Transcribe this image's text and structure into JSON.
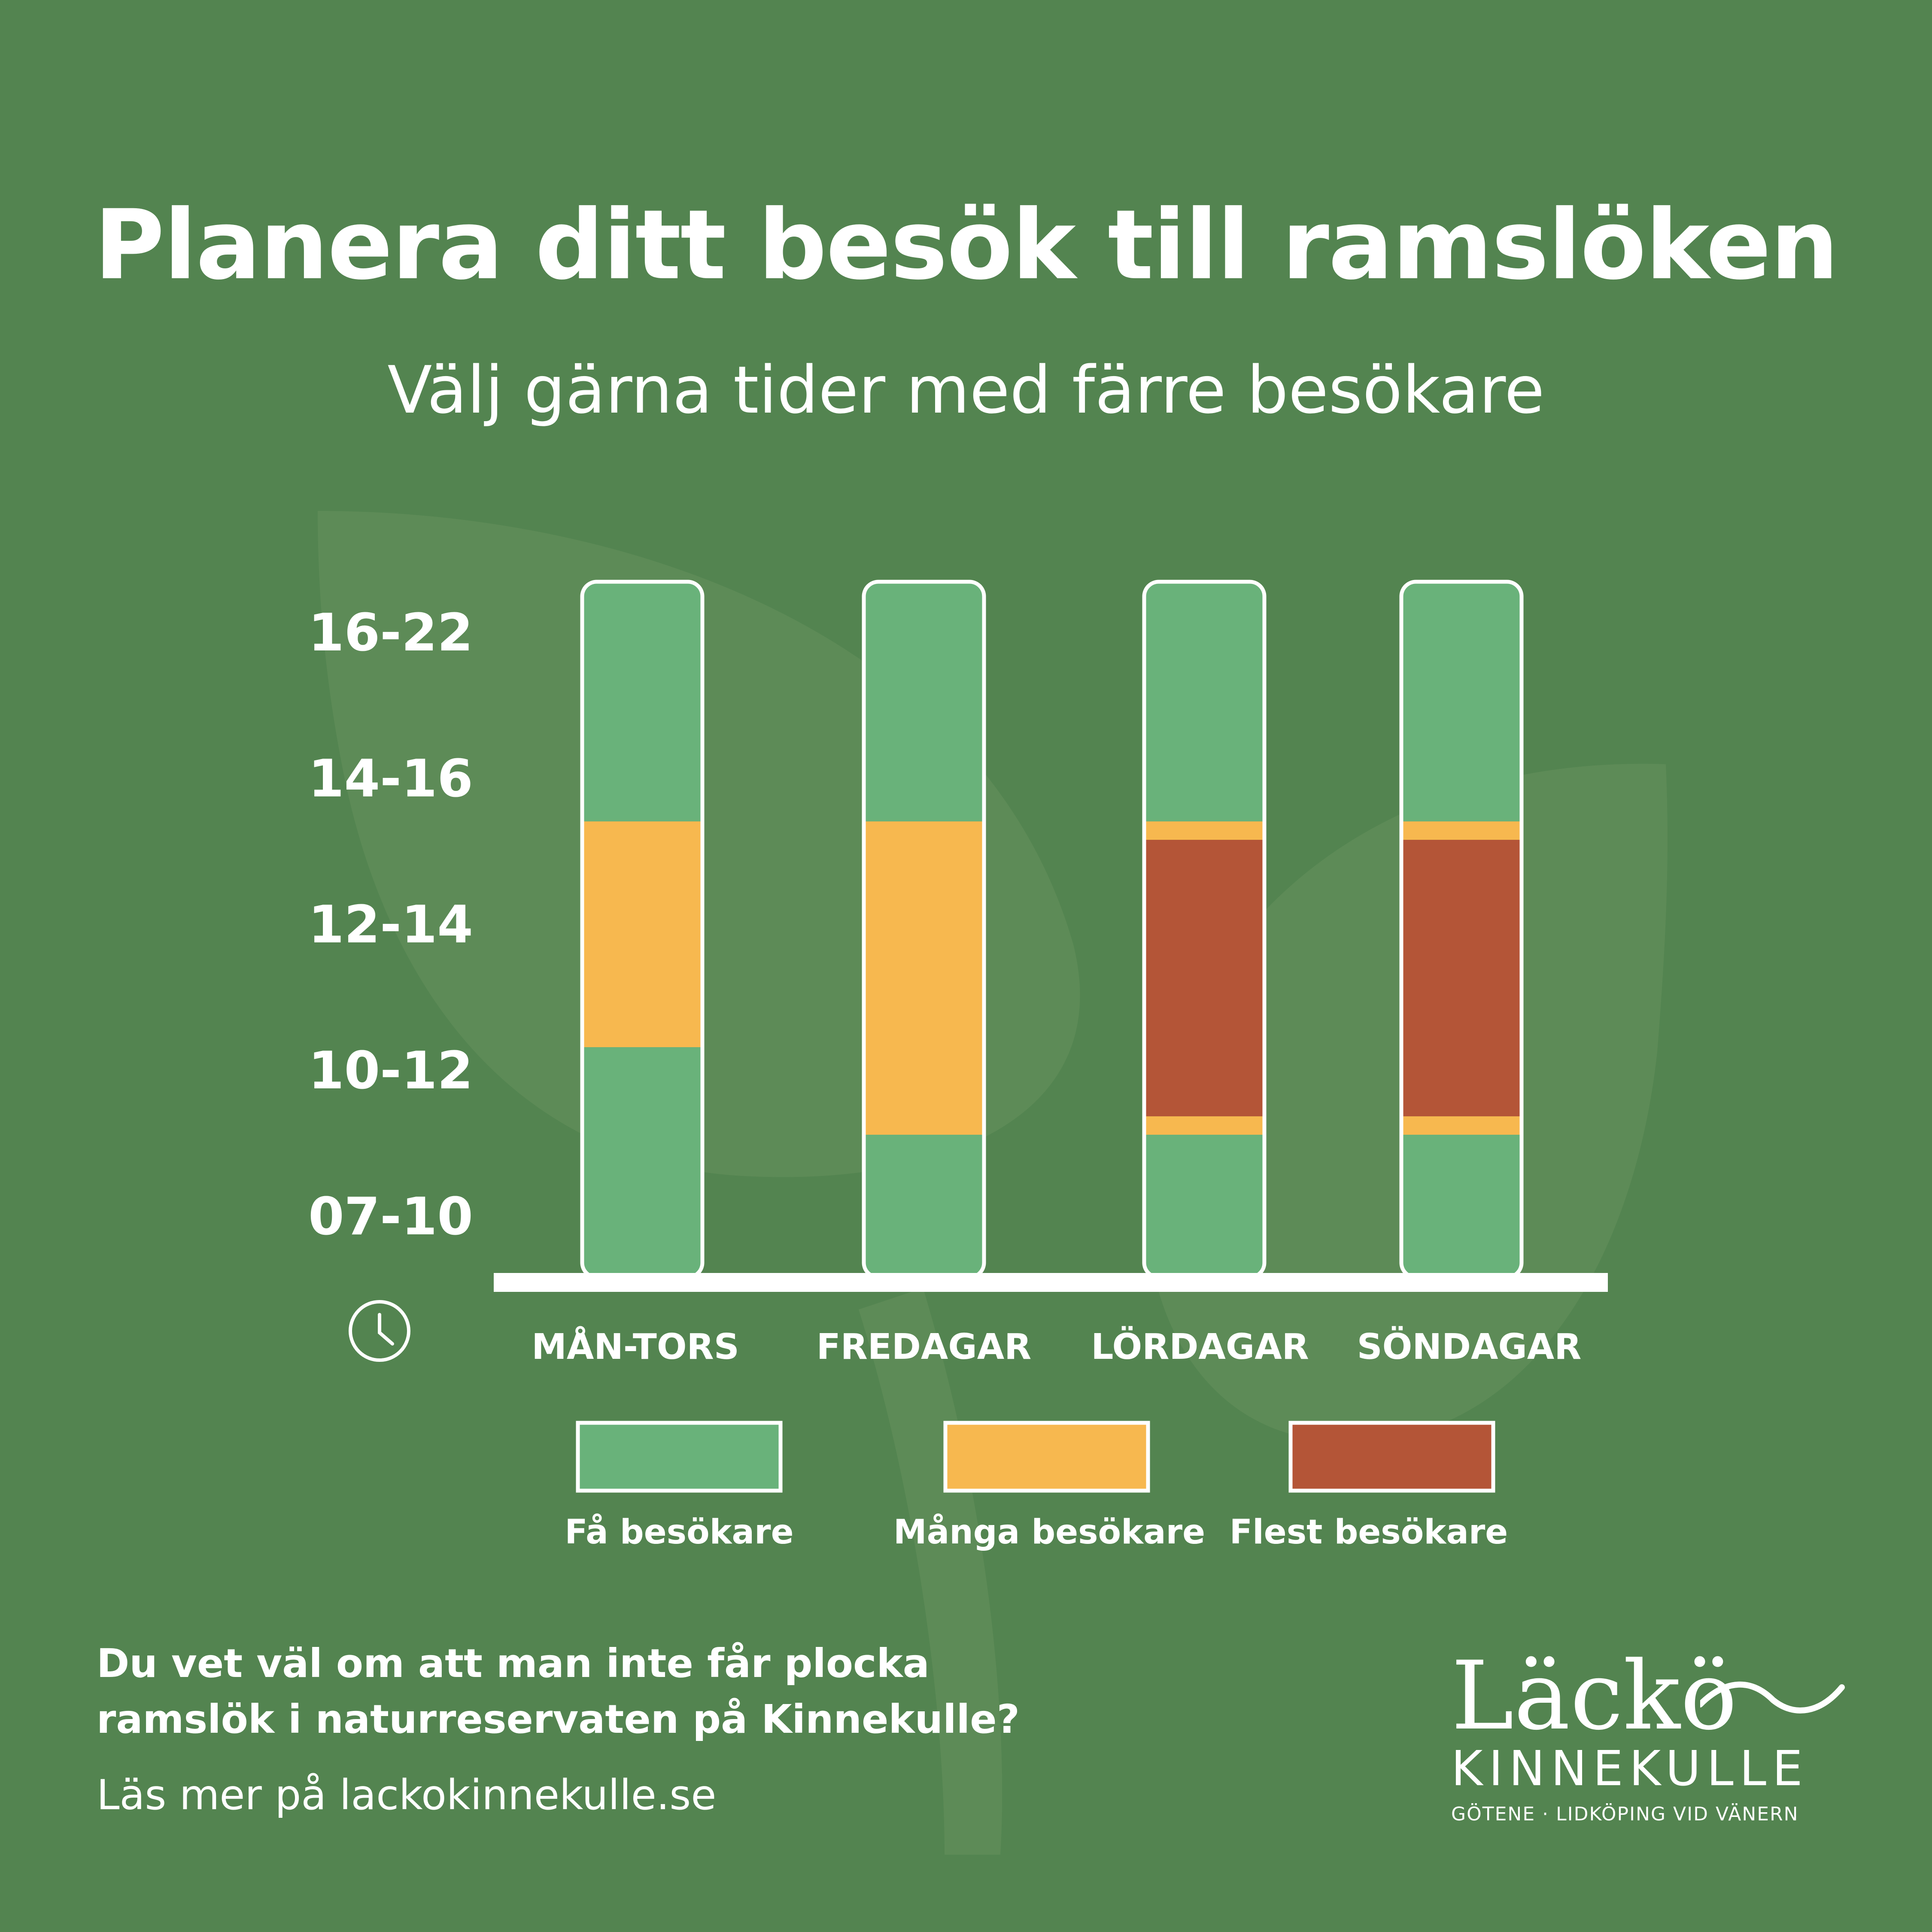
{
  "header": {
    "title": "Planera ditt besök till ramslöken",
    "subtitle": "Välj gärna tider med färre besökare"
  },
  "colors": {
    "background": "#538450",
    "few": "#69B27A",
    "many": "#F7B84F",
    "most": "#B45537",
    "outline": "#FFFFFF"
  },
  "chart_data": {
    "type": "bar",
    "subtype": "stacked-time-ranges",
    "title": "Planera ditt besök till ramslöken",
    "subtitle": "Välj gärna tider med färre besökare",
    "xlabel": "",
    "ylabel": "",
    "axis_icon": "clock-icon",
    "y_ticks": [
      "07-10",
      "10-12",
      "12-14",
      "14-16",
      "16-22"
    ],
    "ylim": [
      7,
      22
    ],
    "categories": [
      "MÅN-TORS",
      "FREDAGAR",
      "LÖRDAGAR",
      "SÖNDAGAR"
    ],
    "levels": [
      {
        "key": "few",
        "label": "Få besökare"
      },
      {
        "key": "many",
        "label": "Många besökare"
      },
      {
        "key": "most",
        "label": "Flest besökare"
      }
    ],
    "bars": [
      {
        "category": "MÅN-TORS",
        "segments": [
          {
            "level": "few",
            "from": 7,
            "to": 11.9
          },
          {
            "level": "many",
            "from": 11.9,
            "to": 16.8
          },
          {
            "level": "few",
            "from": 16.8,
            "to": 22
          }
        ]
      },
      {
        "category": "FREDAGAR",
        "segments": [
          {
            "level": "few",
            "from": 7,
            "to": 10
          },
          {
            "level": "many",
            "from": 10,
            "to": 16.8
          },
          {
            "level": "few",
            "from": 16.8,
            "to": 22
          }
        ]
      },
      {
        "category": "LÖRDAGAR",
        "segments": [
          {
            "level": "few",
            "from": 7,
            "to": 10
          },
          {
            "level": "many",
            "from": 10,
            "to": 10.4
          },
          {
            "level": "most",
            "from": 10.4,
            "to": 16.4
          },
          {
            "level": "many",
            "from": 16.4,
            "to": 16.8
          },
          {
            "level": "few",
            "from": 16.8,
            "to": 22
          }
        ]
      },
      {
        "category": "SÖNDAGAR",
        "segments": [
          {
            "level": "few",
            "from": 7,
            "to": 10
          },
          {
            "level": "many",
            "from": 10,
            "to": 10.4
          },
          {
            "level": "most",
            "from": 10.4,
            "to": 16.4
          },
          {
            "level": "many",
            "from": 16.4,
            "to": 16.8
          },
          {
            "level": "few",
            "from": 16.8,
            "to": 22
          }
        ]
      }
    ],
    "legend": {
      "placement": "bottom",
      "items": [
        "Få besökare",
        "Många besökare",
        "Flest besökare"
      ]
    },
    "grid": false
  },
  "footer": {
    "question_line1": "Du vet väl om att man inte får plocka",
    "question_line2": "ramslök i naturreservaten på Kinnekulle?",
    "link_text": "Läs mer på lackokinnekulle.se"
  },
  "logo": {
    "script": "Läckö",
    "name": "KINNEKULLE",
    "tagline": "GÖTENE · LIDKÖPING VID VÄNERN"
  }
}
